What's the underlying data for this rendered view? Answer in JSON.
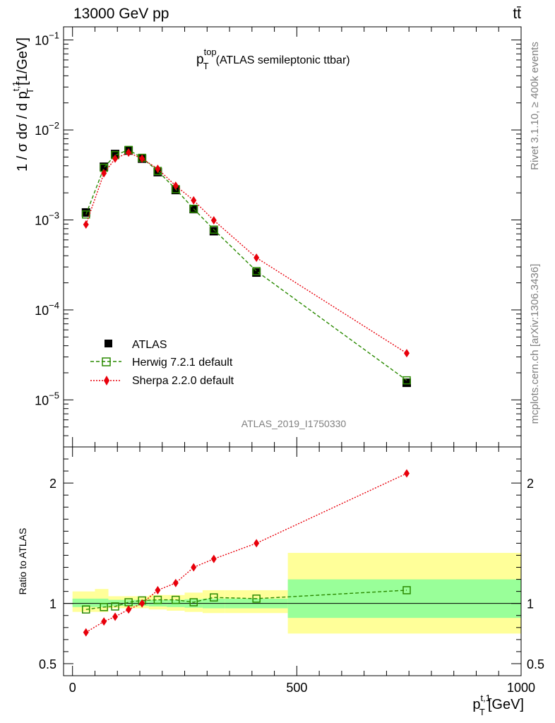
{
  "header": {
    "left": "13000 GeV pp",
    "right": "tt̄"
  },
  "side": {
    "rivet": "Rivet 3.1.10, ≥ 400k events",
    "mcplots": "mcplots.cern.ch [arXiv:1306.3436]"
  },
  "watermark": "ATLAS_2019_I1750330",
  "colors": {
    "data": "#000000",
    "herwig": "#2a8a00",
    "sherpa": "#e8000b",
    "band_inner": "#99ff99",
    "band_outer": "#ffff99"
  },
  "chart_data": [
    {
      "type": "scatter",
      "title_main": "p",
      "title_sup": "top",
      "title_sub": "T",
      "title_rest": "(ATLAS semileptonic ttbar)",
      "ylabel": "1 / σ dσ / d p",
      "ylabel_sup": "t,1",
      "ylabel_sub": "T",
      "ylabel_unit": "[1/GeV]",
      "yscale": "log",
      "ylim": [
        3e-06,
        0.14
      ],
      "xlim": [
        -20,
        1000
      ],
      "yticks": [
        {
          "v": 1e-05,
          "base": "10",
          "exp": "−5"
        },
        {
          "v": 0.0001,
          "base": "10",
          "exp": "−4"
        },
        {
          "v": 0.001,
          "base": "10",
          "exp": "−3"
        },
        {
          "v": 0.01,
          "base": "10",
          "exp": "−2"
        },
        {
          "v": 0.1,
          "base": "10",
          "exp": "−1"
        }
      ],
      "legend_placement": "bottom-left",
      "legend": [
        "ATLAS",
        "Herwig 7.2.1 default",
        "Sherpa 2.2.0 default"
      ],
      "x": [
        30,
        70,
        95,
        125,
        155,
        190,
        230,
        270,
        315,
        410,
        745
      ],
      "series": [
        {
          "name": "ATLAS",
          "values": [
            0.00121,
            0.0039,
            0.0054,
            0.0059,
            0.0048,
            0.0034,
            0.00215,
            0.00132,
            0.00075,
            0.00026,
            1.55e-05
          ]
        },
        {
          "name": "Herwig 7.2.1 default",
          "values": [
            0.00115,
            0.0038,
            0.00525,
            0.006,
            0.0049,
            0.0035,
            0.0022,
            0.00133,
            0.00078,
            0.00027,
            1.65e-05
          ]
        },
        {
          "name": "Sherpa 2.2.0 default",
          "values": [
            0.00089,
            0.0033,
            0.0048,
            0.0056,
            0.0048,
            0.0037,
            0.0024,
            0.00165,
            0.00099,
            0.00038,
            3.3e-05
          ]
        }
      ]
    },
    {
      "type": "scatter",
      "ylabel": "Ratio to ATLAS",
      "xlabel": "p",
      "xlabel_sup": "t,1",
      "xlabel_sub": "T",
      "xlabel_unit": "[GeV]",
      "ylim": [
        0.4,
        2.3
      ],
      "xlim": [
        -20,
        1000
      ],
      "yticks": [
        {
          "v": 0.5,
          "label": "0.5"
        },
        {
          "v": 1,
          "label": "1"
        },
        {
          "v": 2,
          "label": "2"
        }
      ],
      "xticks": [
        {
          "v": 0,
          "label": "0"
        },
        {
          "v": 500,
          "label": "500"
        },
        {
          "v": 1000,
          "label": "1000"
        }
      ],
      "x": [
        30,
        70,
        95,
        125,
        155,
        190,
        230,
        270,
        315,
        410,
        745
      ],
      "series": [
        {
          "name": "Herwig 7.2.1 default",
          "values": [
            0.95,
            0.97,
            0.975,
            1.01,
            1.025,
            1.03,
            1.03,
            1.01,
            1.05,
            1.04,
            1.11
          ]
        },
        {
          "name": "Sherpa 2.2.0 default",
          "values": [
            0.76,
            0.85,
            0.89,
            0.95,
            1.0,
            1.11,
            1.17,
            1.3,
            1.37,
            1.5,
            2.08
          ]
        }
      ],
      "bands": {
        "edges": [
          0,
          50,
          80,
          110,
          140,
          170,
          210,
          250,
          290,
          340,
          480,
          1000
        ],
        "inner": [
          [
            0.97,
            1.04
          ],
          [
            0.97,
            1.04
          ],
          [
            0.98,
            1.03
          ],
          [
            0.98,
            1.03
          ],
          [
            0.98,
            1.03
          ],
          [
            0.975,
            1.03
          ],
          [
            0.97,
            1.03
          ],
          [
            0.965,
            1.035
          ],
          [
            0.96,
            1.04
          ],
          [
            0.96,
            1.04
          ],
          [
            0.88,
            1.2
          ]
        ],
        "outer": [
          [
            0.93,
            1.1
          ],
          [
            0.93,
            1.12
          ],
          [
            0.96,
            1.06
          ],
          [
            0.96,
            1.06
          ],
          [
            0.96,
            1.06
          ],
          [
            0.95,
            1.07
          ],
          [
            0.94,
            1.07
          ],
          [
            0.93,
            1.09
          ],
          [
            0.92,
            1.11
          ],
          [
            0.92,
            1.11
          ],
          [
            0.75,
            1.42
          ]
        ]
      }
    }
  ]
}
